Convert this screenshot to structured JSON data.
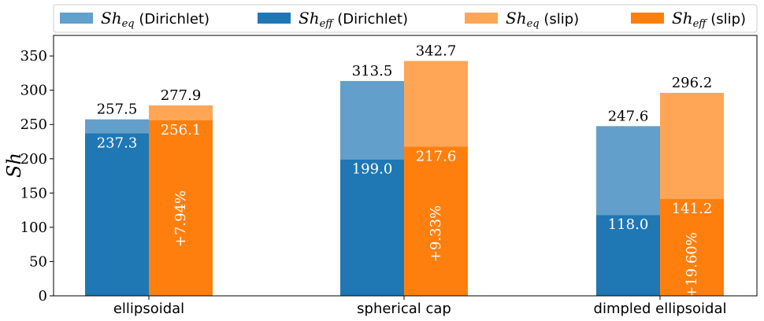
{
  "chart_data": {
    "type": "bar",
    "categories": [
      "ellipsoidal",
      "spherical cap",
      "dimpled ellipsoidal"
    ],
    "ylabel": "Sh",
    "ylim": [
      0,
      380
    ],
    "yticks": [
      0,
      50,
      100,
      150,
      200,
      250,
      300,
      350
    ],
    "grid": false,
    "legend_position": "top",
    "series": [
      {
        "name": "Sh_eq (Dirichlet)",
        "legend_main": "Sh",
        "legend_sub": "eq",
        "legend_tail": " (Dirichlet)",
        "group": "Dirichlet",
        "layer": "eq",
        "color": "#629fcb",
        "values": [
          257.5,
          313.5,
          247.6
        ],
        "labels": [
          "257.5",
          "313.5",
          "247.6"
        ]
      },
      {
        "name": "Sh_eff (Dirichlet)",
        "legend_main": "Sh",
        "legend_sub": "eff",
        "legend_tail": " (Dirichlet)",
        "group": "Dirichlet",
        "layer": "eff",
        "color": "#1f77b4",
        "values": [
          237.3,
          199.0,
          118.0
        ],
        "labels": [
          "237.3",
          "199.0",
          "118.0"
        ]
      },
      {
        "name": "Sh_eq (slip)",
        "legend_main": "Sh",
        "legend_sub": "eq",
        "legend_tail": " (slip)",
        "group": "slip",
        "layer": "eq",
        "color": "#ffa556",
        "values": [
          277.9,
          342.7,
          296.2
        ],
        "labels": [
          "277.9",
          "342.7",
          "296.2"
        ]
      },
      {
        "name": "Sh_eff (slip)",
        "legend_main": "Sh",
        "legend_sub": "eff",
        "legend_tail": " (slip)",
        "group": "slip",
        "layer": "eff",
        "color": "#ff7f0e",
        "values": [
          256.1,
          217.6,
          141.2
        ],
        "labels": [
          "256.1",
          "217.6",
          "141.2"
        ]
      }
    ],
    "annotations": [
      "+7.94%",
      "+9.33%",
      "+19.60%"
    ]
  }
}
